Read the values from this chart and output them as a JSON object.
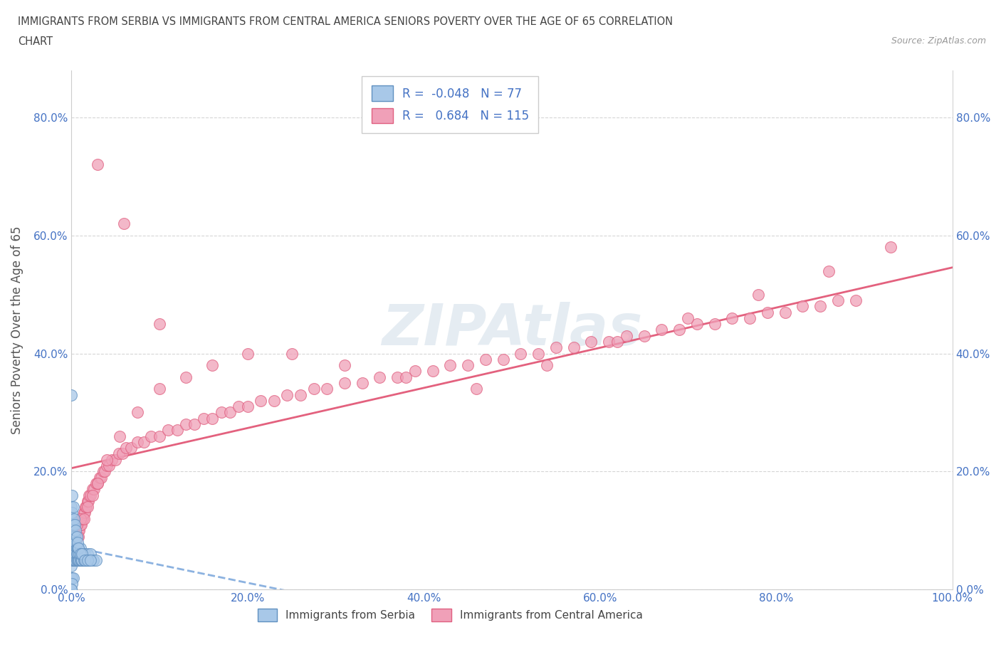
{
  "title_line1": "IMMIGRANTS FROM SERBIA VS IMMIGRANTS FROM CENTRAL AMERICA SENIORS POVERTY OVER THE AGE OF 65 CORRELATION",
  "title_line2": "CHART",
  "source_text": "Source: ZipAtlas.com",
  "ylabel": "Seniors Poverty Over the Age of 65",
  "legend_label1": "Immigrants from Serbia",
  "legend_label2": "Immigrants from Central America",
  "R1": -0.048,
  "N1": 77,
  "R2": 0.684,
  "N2": 115,
  "color_serbia": "#a8c8e8",
  "color_serbia_edge": "#6090c0",
  "color_central": "#f0a0b8",
  "color_central_edge": "#e06080",
  "color_serbia_line": "#80aadd",
  "color_central_line": "#e05070",
  "xmin": 0.0,
  "xmax": 1.0,
  "ymin": 0.0,
  "ymax": 0.88,
  "yticks": [
    0.0,
    0.2,
    0.4,
    0.6,
    0.8
  ],
  "ytick_labels": [
    "0.0%",
    "20.0%",
    "40.0%",
    "60.0%",
    "80.0%"
  ],
  "xticks": [
    0.0,
    0.2,
    0.4,
    0.6,
    0.8,
    1.0
  ],
  "xtick_labels": [
    "0.0%",
    "20.0%",
    "40.0%",
    "60.0%",
    "80.0%",
    "100.0%"
  ],
  "serbia_x": [
    0.0,
    0.0,
    0.0,
    0.0,
    0.0,
    0.0,
    0.001,
    0.001,
    0.001,
    0.001,
    0.001,
    0.001,
    0.001,
    0.002,
    0.002,
    0.002,
    0.002,
    0.002,
    0.002,
    0.003,
    0.003,
    0.003,
    0.003,
    0.003,
    0.004,
    0.004,
    0.004,
    0.004,
    0.005,
    0.005,
    0.005,
    0.005,
    0.006,
    0.006,
    0.006,
    0.007,
    0.007,
    0.007,
    0.008,
    0.008,
    0.009,
    0.009,
    0.01,
    0.01,
    0.011,
    0.011,
    0.012,
    0.013,
    0.014,
    0.015,
    0.016,
    0.017,
    0.018,
    0.02,
    0.022,
    0.025,
    0.028,
    0.0,
    0.001,
    0.002,
    0.003,
    0.004,
    0.005,
    0.006,
    0.007,
    0.008,
    0.01,
    0.012,
    0.015,
    0.018,
    0.022,
    0.0,
    0.001,
    0.002,
    0.0,
    0.001,
    0.0
  ],
  "serbia_y": [
    0.04,
    0.06,
    0.08,
    0.1,
    0.12,
    0.14,
    0.05,
    0.07,
    0.09,
    0.11,
    0.13,
    0.06,
    0.08,
    0.05,
    0.07,
    0.09,
    0.11,
    0.06,
    0.08,
    0.05,
    0.07,
    0.09,
    0.06,
    0.08,
    0.05,
    0.07,
    0.09,
    0.06,
    0.05,
    0.07,
    0.06,
    0.08,
    0.05,
    0.07,
    0.06,
    0.05,
    0.07,
    0.06,
    0.05,
    0.07,
    0.05,
    0.06,
    0.05,
    0.07,
    0.05,
    0.06,
    0.05,
    0.06,
    0.05,
    0.06,
    0.05,
    0.05,
    0.06,
    0.05,
    0.06,
    0.05,
    0.05,
    0.33,
    0.16,
    0.14,
    0.12,
    0.11,
    0.1,
    0.09,
    0.08,
    0.07,
    0.06,
    0.06,
    0.05,
    0.05,
    0.05,
    0.02,
    0.02,
    0.02,
    0.0,
    0.01,
    0.0
  ],
  "central_x": [
    0.002,
    0.003,
    0.004,
    0.005,
    0.006,
    0.007,
    0.008,
    0.009,
    0.01,
    0.011,
    0.012,
    0.013,
    0.014,
    0.015,
    0.016,
    0.017,
    0.018,
    0.019,
    0.02,
    0.022,
    0.024,
    0.026,
    0.028,
    0.03,
    0.032,
    0.034,
    0.036,
    0.038,
    0.04,
    0.043,
    0.046,
    0.05,
    0.054,
    0.058,
    0.062,
    0.068,
    0.075,
    0.082,
    0.09,
    0.1,
    0.11,
    0.12,
    0.13,
    0.14,
    0.15,
    0.16,
    0.17,
    0.18,
    0.19,
    0.2,
    0.215,
    0.23,
    0.245,
    0.26,
    0.275,
    0.29,
    0.31,
    0.33,
    0.35,
    0.37,
    0.39,
    0.41,
    0.43,
    0.45,
    0.47,
    0.49,
    0.51,
    0.53,
    0.55,
    0.57,
    0.59,
    0.61,
    0.63,
    0.65,
    0.67,
    0.69,
    0.71,
    0.73,
    0.75,
    0.77,
    0.79,
    0.81,
    0.83,
    0.85,
    0.87,
    0.89,
    0.002,
    0.004,
    0.006,
    0.008,
    0.01,
    0.014,
    0.018,
    0.024,
    0.03,
    0.04,
    0.055,
    0.075,
    0.1,
    0.13,
    0.16,
    0.2,
    0.25,
    0.31,
    0.38,
    0.46,
    0.54,
    0.62,
    0.7,
    0.78,
    0.86,
    0.93,
    0.03,
    0.06,
    0.1
  ],
  "central_y": [
    0.06,
    0.07,
    0.08,
    0.08,
    0.09,
    0.09,
    0.1,
    0.1,
    0.11,
    0.11,
    0.12,
    0.12,
    0.13,
    0.13,
    0.14,
    0.14,
    0.15,
    0.15,
    0.16,
    0.16,
    0.17,
    0.17,
    0.18,
    0.18,
    0.19,
    0.19,
    0.2,
    0.2,
    0.21,
    0.21,
    0.22,
    0.22,
    0.23,
    0.23,
    0.24,
    0.24,
    0.25,
    0.25,
    0.26,
    0.26,
    0.27,
    0.27,
    0.28,
    0.28,
    0.29,
    0.29,
    0.3,
    0.3,
    0.31,
    0.31,
    0.32,
    0.32,
    0.33,
    0.33,
    0.34,
    0.34,
    0.35,
    0.35,
    0.36,
    0.36,
    0.37,
    0.37,
    0.38,
    0.38,
    0.39,
    0.39,
    0.4,
    0.4,
    0.41,
    0.41,
    0.42,
    0.42,
    0.43,
    0.43,
    0.44,
    0.44,
    0.45,
    0.45,
    0.46,
    0.46,
    0.47,
    0.47,
    0.48,
    0.48,
    0.49,
    0.49,
    0.1,
    0.08,
    0.11,
    0.09,
    0.12,
    0.12,
    0.14,
    0.16,
    0.18,
    0.22,
    0.26,
    0.3,
    0.34,
    0.36,
    0.38,
    0.4,
    0.4,
    0.38,
    0.36,
    0.34,
    0.38,
    0.42,
    0.46,
    0.5,
    0.54,
    0.58,
    0.72,
    0.62,
    0.45
  ]
}
